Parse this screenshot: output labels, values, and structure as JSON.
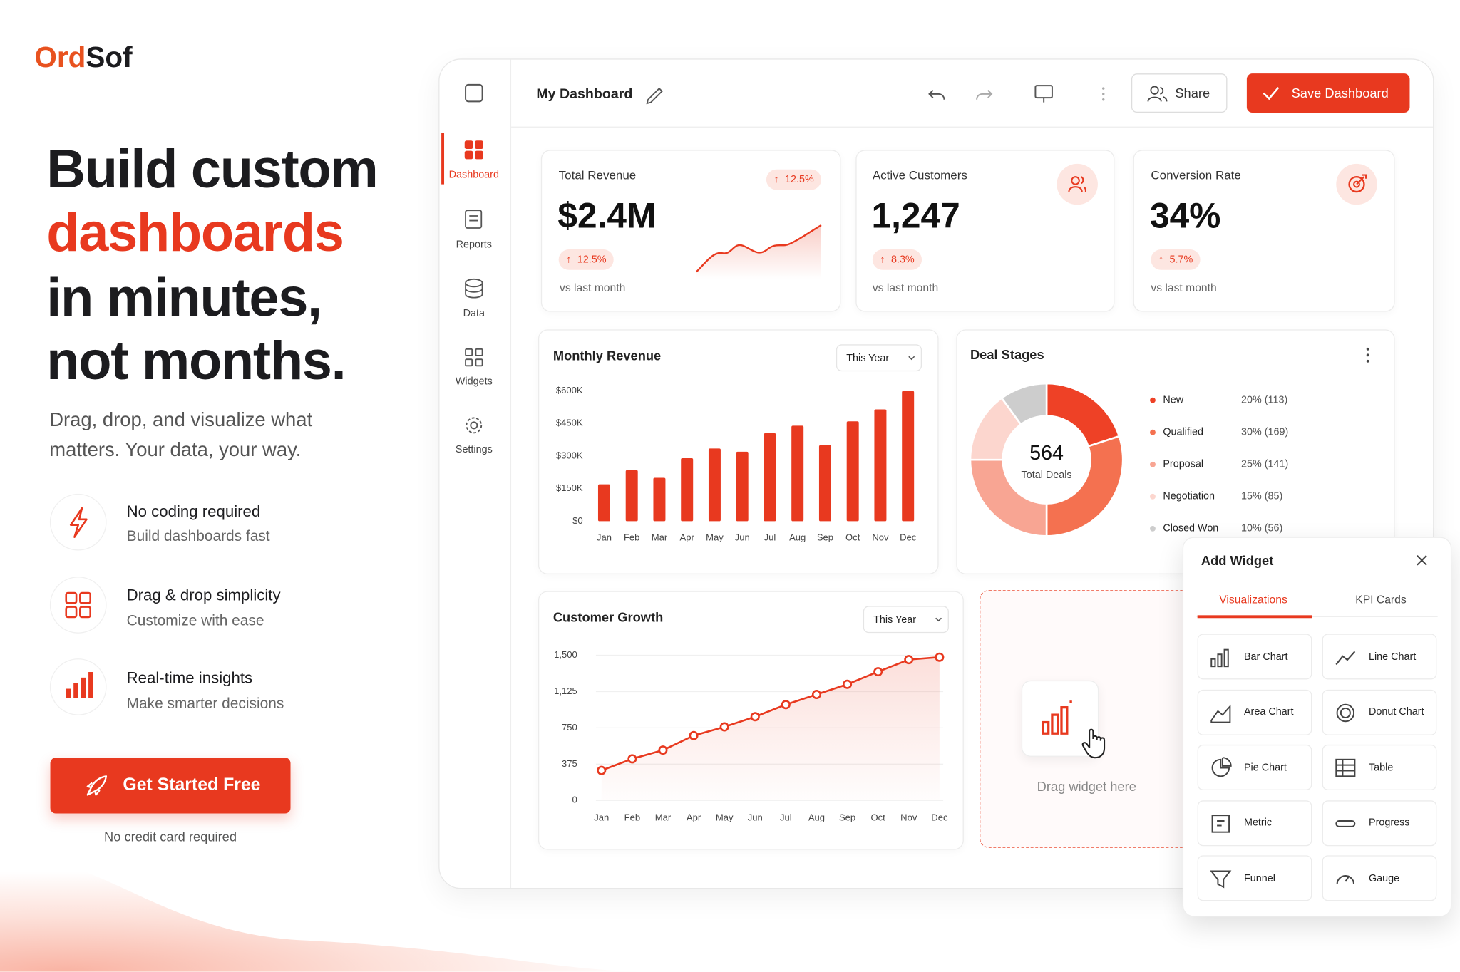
{
  "brand": {
    "accent": "Ord",
    "rest": "Sof"
  },
  "hero": {
    "headline": [
      "Build custom",
      "dashboards",
      "in minutes,",
      "not months."
    ],
    "subtitle": [
      "Drag, drop, and visualize what",
      "matters. Your data, your way."
    ]
  },
  "features": [
    {
      "title": "No coding required",
      "text": "Build dashboards fast"
    },
    {
      "title": "Drag & drop simplicity",
      "text": "Customize with ease"
    },
    {
      "title": "Real-time insights",
      "text": "Make smarter decisions"
    }
  ],
  "cta": {
    "button": "Get Started Free",
    "note": "No credit card required"
  },
  "dashboard": {
    "title": "My Dashboard",
    "share": "Share",
    "save": "Save Dashboard",
    "nav": [
      "Dashboard",
      "Reports",
      "Data",
      "Widgets",
      "Settings"
    ],
    "kpis": [
      {
        "title": "Total Revenue",
        "value": "$2.4M",
        "badge": "12.5%",
        "change": "12.5%",
        "note": "vs last month"
      },
      {
        "title": "Active Customers",
        "value": "1,247",
        "change": "8.3%",
        "note": "vs last month"
      },
      {
        "title": "Conversion Rate",
        "value": "34%",
        "change": "5.7%",
        "note": "vs last month"
      }
    ],
    "drop_zone": "Drag widget here"
  },
  "add_widget": {
    "title": "Add Widget",
    "tabs": [
      "Visualizations",
      "KPI Cards"
    ],
    "items": [
      "Bar Chart",
      "Line Chart",
      "Area Chart",
      "Donut Chart",
      "Pie Chart",
      "Table",
      "Metric",
      "Progress",
      "Funnel",
      "Gauge"
    ]
  },
  "chart_data": [
    {
      "type": "bar",
      "title": "Monthly Revenue",
      "filter": "This Year",
      "categories": [
        "Jan",
        "Feb",
        "Mar",
        "Apr",
        "May",
        "Jun",
        "Jul",
        "Aug",
        "Sep",
        "Oct",
        "Nov",
        "Dec"
      ],
      "values": [
        170000,
        235000,
        200000,
        290000,
        335000,
        320000,
        405000,
        440000,
        350000,
        460000,
        515000,
        600000
      ],
      "color": "#e8391f",
      "ylim": [
        0,
        600000
      ],
      "yticks": [
        {
          "value": 0,
          "label": "$0"
        },
        {
          "value": 150000,
          "label": "$150K"
        },
        {
          "value": 300000,
          "label": "$300K"
        },
        {
          "value": 450000,
          "label": "$450K"
        },
        {
          "value": 600000,
          "label": "$600K"
        }
      ],
      "grid": false
    },
    {
      "type": "line",
      "title": "Customer Growth",
      "filter": "This Year",
      "categories": [
        "Jan",
        "Feb",
        "Mar",
        "Apr",
        "May",
        "Jun",
        "Jul",
        "Aug",
        "Sep",
        "Oct",
        "Nov",
        "Dec"
      ],
      "values": [
        310,
        430,
        520,
        670,
        760,
        865,
        990,
        1095,
        1200,
        1330,
        1455,
        1480
      ],
      "color": "#e8391f",
      "ylim": [
        0,
        1500
      ],
      "yticks": [
        0,
        375,
        750,
        {
          "value": 1125,
          "label": "1,125"
        },
        {
          "value": 1500,
          "label": "1,500"
        }
      ],
      "grid": true
    },
    {
      "type": "pie",
      "title": "Deal Stages",
      "donut": true,
      "total": 564,
      "total_label": "Total Deals",
      "categories": [
        "New",
        "Qualified",
        "Proposal",
        "Negotiation",
        "Closed Won"
      ],
      "values": [
        20,
        30,
        25,
        15,
        10
      ],
      "value_labels": [
        "20% (113)",
        "30% (169)",
        "25% (141)",
        "15% (85)",
        "10% (56)"
      ],
      "colors": [
        "#ee4126",
        "#f47150",
        "#f8a593",
        "#fcd6ce",
        "#cdcdcd"
      ]
    }
  ]
}
